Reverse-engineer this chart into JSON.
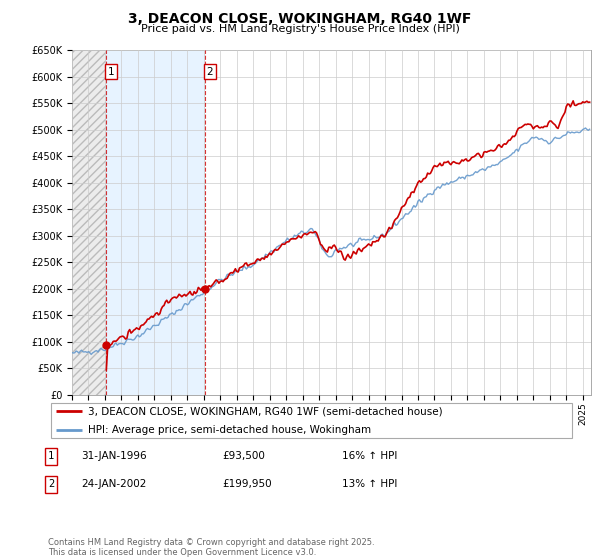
{
  "title": "3, DEACON CLOSE, WOKINGHAM, RG40 1WF",
  "subtitle": "Price paid vs. HM Land Registry's House Price Index (HPI)",
  "ylim": [
    0,
    650000
  ],
  "yticks": [
    0,
    50000,
    100000,
    150000,
    200000,
    250000,
    300000,
    350000,
    400000,
    450000,
    500000,
    550000,
    600000,
    650000
  ],
  "ytick_labels": [
    "£0",
    "£50K",
    "£100K",
    "£150K",
    "£200K",
    "£250K",
    "£300K",
    "£350K",
    "£400K",
    "£450K",
    "£500K",
    "£550K",
    "£600K",
    "£650K"
  ],
  "background_color": "#ffffff",
  "grid_color": "#cccccc",
  "sale1_date": 1996.08,
  "sale1_price": 93500,
  "sale2_date": 2002.07,
  "sale2_price": 199950,
  "sale1_date_str": "31-JAN-1996",
  "sale1_price_str": "£93,500",
  "sale1_hpi_str": "16% ↑ HPI",
  "sale2_date_str": "24-JAN-2002",
  "sale2_price_str": "£199,950",
  "sale2_hpi_str": "13% ↑ HPI",
  "sale_color": "#cc0000",
  "hpi_color": "#6699cc",
  "legend_sale_label": "3, DEACON CLOSE, WOKINGHAM, RG40 1WF (semi-detached house)",
  "legend_hpi_label": "HPI: Average price, semi-detached house, Wokingham",
  "footnote": "Contains HM Land Registry data © Crown copyright and database right 2025.\nThis data is licensed under the Open Government Licence v3.0.",
  "xstart": 1994.0,
  "xend": 2025.5
}
